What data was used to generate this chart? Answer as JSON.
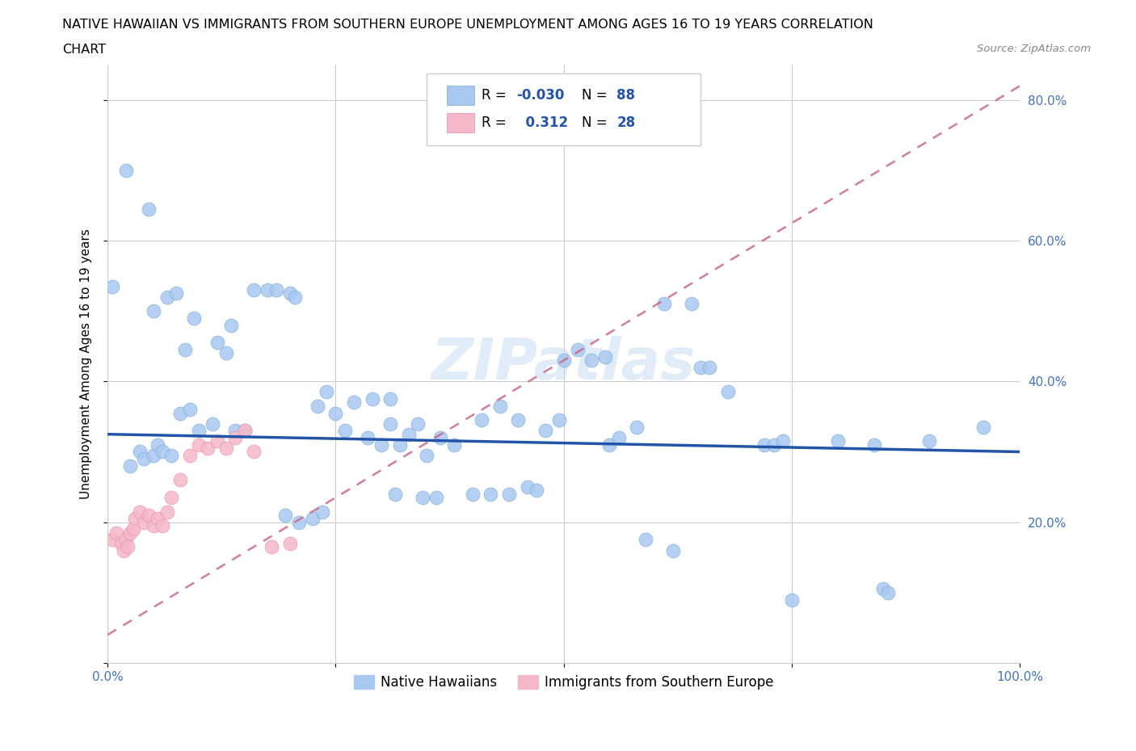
{
  "title_line1": "NATIVE HAWAIIAN VS IMMIGRANTS FROM SOUTHERN EUROPE UNEMPLOYMENT AMONG AGES 16 TO 19 YEARS CORRELATION",
  "title_line2": "CHART",
  "source": "Source: ZipAtlas.com",
  "ylabel": "Unemployment Among Ages 16 to 19 years",
  "xlim": [
    0.0,
    1.0
  ],
  "ylim": [
    0.0,
    0.85
  ],
  "blue_color": "#a8c8f0",
  "blue_edge_color": "#7badd4",
  "pink_color": "#f5b8c8",
  "pink_edge_color": "#e890a8",
  "blue_line_color": "#2255aa",
  "pink_line_color": "#cc6688",
  "R_blue": -0.03,
  "N_blue": 88,
  "R_pink": 0.312,
  "N_pink": 28,
  "legend_label_blue": "Native Hawaiians",
  "legend_label_pink": "Immigrants from Southern Europe",
  "watermark": "ZIPatlas",
  "blue_line_x0": 0.0,
  "blue_line_y0": 0.325,
  "blue_line_x1": 1.0,
  "blue_line_y1": 0.3,
  "pink_line_x0": 0.0,
  "pink_line_y0": 0.04,
  "pink_line_x1": 1.0,
  "pink_line_y1": 0.82
}
